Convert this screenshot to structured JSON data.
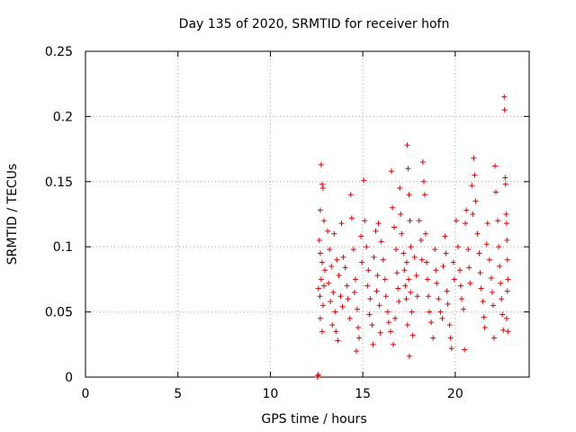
{
  "chart_data": {
    "type": "scatter",
    "title": "Day 135 of 2020, SRMTID for receiver hofn",
    "xlabel": "GPS time / hours",
    "ylabel": "SRMTID / TECUs",
    "xlim": [
      0,
      24
    ],
    "ylim": [
      0,
      0.25
    ],
    "x_ticks": [
      0,
      5,
      10,
      15,
      20
    ],
    "x_tick_labels": [
      "0",
      "5",
      "10",
      "15",
      "20"
    ],
    "y_ticks": [
      0,
      0.05,
      0.1,
      0.15,
      0.2,
      0.25
    ],
    "y_tick_labels": [
      "0",
      "0.05",
      "0.1",
      "0.15",
      "0.2",
      "0.25"
    ],
    "grid": true,
    "marker": "+",
    "color": "#e00000",
    "series": [
      {
        "name": "SRMTID",
        "points": [
          [
            12.55,
            0.0
          ],
          [
            12.57,
            0.001
          ],
          [
            12.6,
            0.002
          ],
          [
            12.75,
            0.163
          ],
          [
            12.8,
            0.148
          ],
          [
            12.85,
            0.145
          ],
          [
            12.7,
            0.128
          ],
          [
            12.9,
            0.12
          ],
          [
            12.65,
            0.105
          ],
          [
            12.7,
            0.095
          ],
          [
            12.8,
            0.088
          ],
          [
            12.75,
            0.075
          ],
          [
            12.9,
            0.07
          ],
          [
            12.68,
            0.062
          ],
          [
            12.85,
            0.055
          ],
          [
            12.7,
            0.045
          ],
          [
            12.8,
            0.035
          ],
          [
            12.95,
            0.082
          ],
          [
            12.6,
            0.068
          ],
          [
            13.1,
            0.112
          ],
          [
            13.2,
            0.098
          ],
          [
            13.3,
            0.085
          ],
          [
            13.15,
            0.072
          ],
          [
            13.4,
            0.065
          ],
          [
            13.25,
            0.058
          ],
          [
            13.5,
            0.05
          ],
          [
            13.35,
            0.04
          ],
          [
            13.6,
            0.09
          ],
          [
            13.45,
            0.11
          ],
          [
            13.7,
            0.078
          ],
          [
            13.8,
            0.062
          ],
          [
            13.9,
            0.054
          ],
          [
            13.55,
            0.035
          ],
          [
            13.65,
            0.028
          ],
          [
            13.85,
            0.118
          ],
          [
            13.95,
            0.092
          ],
          [
            14.05,
            0.084
          ],
          [
            14.15,
            0.07
          ],
          [
            14.2,
            0.06
          ],
          [
            14.3,
            0.045
          ],
          [
            14.35,
            0.14
          ],
          [
            14.4,
            0.122
          ],
          [
            14.5,
            0.098
          ],
          [
            14.6,
            0.075
          ],
          [
            14.55,
            0.065
          ],
          [
            14.7,
            0.052
          ],
          [
            14.65,
            0.02
          ],
          [
            14.8,
            0.03
          ],
          [
            14.9,
            0.108
          ],
          [
            14.95,
            0.088
          ],
          [
            14.75,
            0.038
          ],
          [
            15.05,
            0.151
          ],
          [
            15.1,
            0.12
          ],
          [
            15.2,
            0.1
          ],
          [
            15.3,
            0.082
          ],
          [
            15.25,
            0.07
          ],
          [
            15.4,
            0.06
          ],
          [
            15.35,
            0.048
          ],
          [
            15.5,
            0.04
          ],
          [
            15.6,
            0.092
          ],
          [
            15.7,
            0.112
          ],
          [
            15.8,
            0.078
          ],
          [
            15.75,
            0.066
          ],
          [
            15.9,
            0.055
          ],
          [
            15.95,
            0.034
          ],
          [
            15.55,
            0.025
          ],
          [
            15.85,
            0.118
          ],
          [
            16.0,
            0.104
          ],
          [
            16.1,
            0.09
          ],
          [
            16.2,
            0.075
          ],
          [
            16.25,
            0.062
          ],
          [
            16.35,
            0.05
          ],
          [
            16.4,
            0.042
          ],
          [
            16.5,
            0.035
          ],
          [
            16.55,
            0.158
          ],
          [
            16.6,
            0.13
          ],
          [
            16.7,
            0.115
          ],
          [
            16.8,
            0.098
          ],
          [
            16.85,
            0.08
          ],
          [
            16.9,
            0.068
          ],
          [
            16.95,
            0.058
          ],
          [
            16.75,
            0.045
          ],
          [
            16.65,
            0.025
          ],
          [
            17.0,
            0.145
          ],
          [
            17.05,
            0.125
          ],
          [
            17.1,
            0.11
          ],
          [
            17.2,
            0.095
          ],
          [
            17.25,
            0.082
          ],
          [
            17.3,
            0.07
          ],
          [
            17.35,
            0.06
          ],
          [
            17.4,
            0.178
          ],
          [
            17.45,
            0.16
          ],
          [
            17.5,
            0.14
          ],
          [
            17.55,
            0.12
          ],
          [
            17.6,
            0.1
          ],
          [
            17.38,
            0.088
          ],
          [
            17.48,
            0.075
          ],
          [
            17.58,
            0.065
          ],
          [
            17.65,
            0.05
          ],
          [
            17.42,
            0.04
          ],
          [
            17.52,
            0.016
          ],
          [
            17.7,
            0.032
          ],
          [
            17.8,
            0.092
          ],
          [
            17.9,
            0.078
          ],
          [
            17.95,
            0.062
          ],
          [
            18.05,
            0.12
          ],
          [
            18.15,
            0.105
          ],
          [
            18.2,
            0.09
          ],
          [
            18.25,
            0.165
          ],
          [
            18.3,
            0.15
          ],
          [
            18.35,
            0.14
          ],
          [
            18.4,
            0.11
          ],
          [
            18.45,
            0.088
          ],
          [
            18.5,
            0.075
          ],
          [
            18.55,
            0.062
          ],
          [
            18.6,
            0.05
          ],
          [
            18.7,
            0.042
          ],
          [
            18.8,
            0.03
          ],
          [
            18.9,
            0.098
          ],
          [
            18.95,
            0.082
          ],
          [
            19.0,
            0.072
          ],
          [
            19.1,
            0.06
          ],
          [
            19.2,
            0.05
          ],
          [
            19.3,
            0.045
          ],
          [
            19.35,
            0.085
          ],
          [
            19.45,
            0.108
          ],
          [
            19.5,
            0.095
          ],
          [
            19.55,
            0.066
          ],
          [
            19.6,
            0.056
          ],
          [
            19.7,
            0.04
          ],
          [
            19.75,
            0.03
          ],
          [
            19.8,
            0.022
          ],
          [
            19.9,
            0.088
          ],
          [
            19.95,
            0.075
          ],
          [
            20.05,
            0.12
          ],
          [
            20.15,
            0.1
          ],
          [
            20.25,
            0.082
          ],
          [
            20.3,
            0.07
          ],
          [
            20.35,
            0.06
          ],
          [
            20.45,
            0.052
          ],
          [
            20.5,
            0.021
          ],
          [
            20.55,
            0.118
          ],
          [
            20.6,
            0.128
          ],
          [
            20.7,
            0.098
          ],
          [
            20.75,
            0.084
          ],
          [
            20.8,
            0.072
          ],
          [
            20.9,
            0.147
          ],
          [
            20.95,
            0.125
          ],
          [
            21.0,
            0.168
          ],
          [
            21.05,
            0.155
          ],
          [
            21.1,
            0.135
          ],
          [
            21.2,
            0.11
          ],
          [
            21.3,
            0.095
          ],
          [
            21.35,
            0.08
          ],
          [
            21.4,
            0.068
          ],
          [
            21.5,
            0.058
          ],
          [
            21.55,
            0.046
          ],
          [
            21.6,
            0.038
          ],
          [
            21.7,
            0.102
          ],
          [
            21.75,
            0.118
          ],
          [
            21.85,
            0.09
          ],
          [
            21.95,
            0.076
          ],
          [
            22.0,
            0.065
          ],
          [
            22.05,
            0.055
          ],
          [
            22.1,
            0.03
          ],
          [
            22.15,
            0.162
          ],
          [
            22.2,
            0.142
          ],
          [
            22.3,
            0.12
          ],
          [
            22.35,
            0.1
          ],
          [
            22.4,
            0.085
          ],
          [
            22.45,
            0.072
          ],
          [
            22.5,
            0.06
          ],
          [
            22.55,
            0.048
          ],
          [
            22.6,
            0.036
          ],
          [
            22.65,
            0.215
          ],
          [
            22.67,
            0.205
          ],
          [
            22.7,
            0.153
          ],
          [
            22.72,
            0.148
          ],
          [
            22.75,
            0.125
          ],
          [
            22.78,
            0.118
          ],
          [
            22.8,
            0.105
          ],
          [
            22.82,
            0.09
          ],
          [
            22.85,
            0.075
          ],
          [
            22.82,
            0.066
          ],
          [
            22.78,
            0.045
          ],
          [
            22.85,
            0.035
          ]
        ]
      }
    ]
  }
}
